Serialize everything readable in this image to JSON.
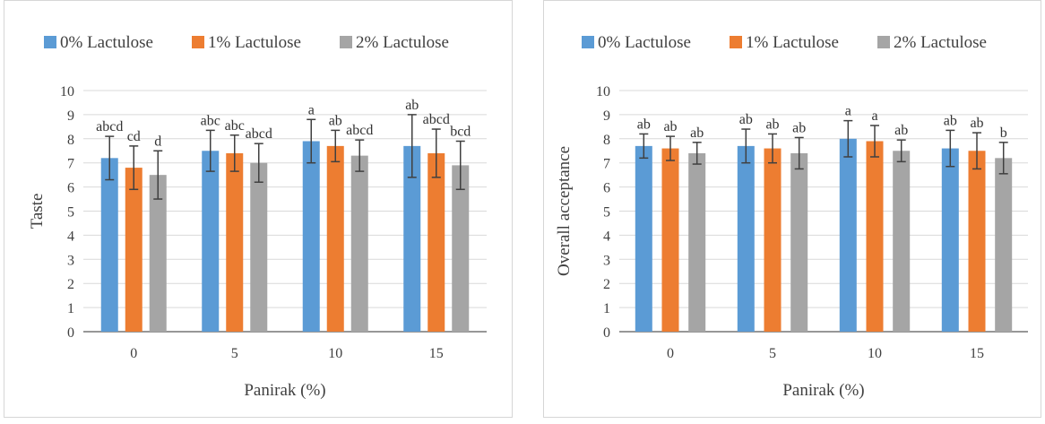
{
  "colors": {
    "s0": "#5b9bd5",
    "s1": "#ed7d31",
    "s2": "#a5a5a5",
    "grid": "#d9d9d9",
    "axis": "#595959",
    "err": "#404040"
  },
  "chart_data": [
    {
      "type": "bar",
      "categories": [
        "0",
        "5",
        "10",
        "15"
      ],
      "xlabel": "Panirak (%)",
      "ylabel": "Taste",
      "ylim": [
        0,
        10
      ],
      "yticks": [
        "0",
        "1",
        "2",
        "3",
        "4",
        "5",
        "6",
        "7",
        "8",
        "9",
        "10"
      ],
      "grid": true,
      "legend_position": "top",
      "series": [
        {
          "name": "0% Lactulose",
          "values": [
            7.2,
            7.5,
            7.9,
            7.7
          ],
          "err": [
            0.9,
            0.85,
            0.9,
            1.3
          ],
          "labels": [
            "abcd",
            "abc",
            "a",
            "ab"
          ]
        },
        {
          "name": "1% Lactulose",
          "values": [
            6.8,
            7.4,
            7.7,
            7.4
          ],
          "err": [
            0.9,
            0.75,
            0.65,
            1.0
          ],
          "labels": [
            "cd",
            "abc",
            "ab",
            "abcd"
          ]
        },
        {
          "name": "2% Lactulose",
          "values": [
            6.5,
            7.0,
            7.3,
            6.9
          ],
          "err": [
            1.0,
            0.8,
            0.65,
            1.0
          ],
          "labels": [
            "d",
            "abcd",
            "abcd",
            "bcd"
          ]
        }
      ]
    },
    {
      "type": "bar",
      "categories": [
        "0",
        "5",
        "10",
        "15"
      ],
      "xlabel": "Panirak (%)",
      "ylabel": "Overall  acceptance",
      "ylim": [
        0,
        10
      ],
      "yticks": [
        "0",
        "1",
        "2",
        "3",
        "4",
        "5",
        "6",
        "7",
        "8",
        "9",
        "10"
      ],
      "grid": true,
      "legend_position": "top",
      "series": [
        {
          "name": "0% Lactulose",
          "values": [
            7.7,
            7.7,
            8.0,
            7.6
          ],
          "err": [
            0.5,
            0.7,
            0.75,
            0.75
          ],
          "labels": [
            "ab",
            "ab",
            "a",
            "ab"
          ]
        },
        {
          "name": "1% Lactulose",
          "values": [
            7.6,
            7.6,
            7.9,
            7.5
          ],
          "err": [
            0.5,
            0.6,
            0.65,
            0.75
          ],
          "labels": [
            "ab",
            "ab",
            "a",
            "ab"
          ]
        },
        {
          "name": "2% Lactulose",
          "values": [
            7.4,
            7.4,
            7.5,
            7.2
          ],
          "err": [
            0.45,
            0.65,
            0.45,
            0.65
          ],
          "labels": [
            "ab",
            "ab",
            "ab",
            "b"
          ]
        }
      ]
    }
  ]
}
